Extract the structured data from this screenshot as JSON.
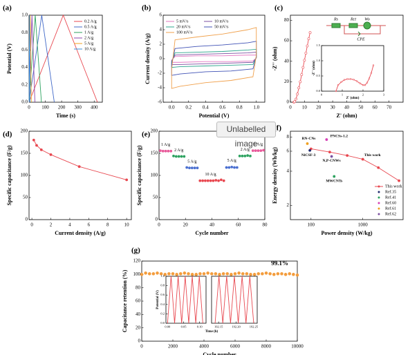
{
  "overlay": "Unlabelled image",
  "chart_data": [
    {
      "type": "line",
      "panel": "(a)",
      "xlabel": "Time (s)",
      "ylabel": "Potential (V)",
      "xlim": [
        0,
        450
      ],
      "xticks": [
        0,
        100,
        200,
        300,
        400
      ],
      "ylim": [
        0,
        1
      ],
      "yticks": [
        {
          "value": 0,
          "label": "0.0"
        },
        {
          "value": 0.2,
          "label": "0.2"
        },
        {
          "value": 0.4,
          "label": "0.4"
        },
        {
          "value": 0.6,
          "label": "0.6"
        },
        {
          "value": 0.8,
          "label": "0.8"
        },
        {
          "value": 1,
          "label": "1.0"
        }
      ],
      "legend": "upper right",
      "series": [
        {
          "name": "0.2 A/g",
          "color": "#e8474f",
          "x": [
            0,
            210,
            420
          ],
          "values": [
            0,
            1,
            0
          ]
        },
        {
          "name": "0.5 A/g",
          "color": "#4169c8",
          "x": [
            0,
            78,
            155
          ],
          "values": [
            0,
            1,
            0
          ]
        },
        {
          "name": "1 A/g",
          "color": "#2ca25f",
          "x": [
            0,
            38,
            76
          ],
          "values": [
            0,
            1,
            0
          ]
        },
        {
          "name": "2 A/g",
          "color": "#8e44ad",
          "x": [
            0,
            18,
            36
          ],
          "values": [
            0,
            1,
            0
          ]
        },
        {
          "name": "5 A/g",
          "color": "#f0a020",
          "x": [
            0,
            7,
            14
          ],
          "values": [
            0,
            1,
            0
          ]
        },
        {
          "name": "10 A/g",
          "color": "#3b8fd9",
          "x": [
            0,
            3,
            6
          ],
          "values": [
            0,
            1,
            0
          ]
        }
      ]
    },
    {
      "type": "line",
      "panel": "(b)",
      "xlabel": "Potential (V)",
      "ylabel": "Current density (A/g)",
      "xlim": [
        -0.1,
        1.1
      ],
      "xticks": [
        {
          "value": 0,
          "label": "0.0"
        },
        {
          "value": 0.2,
          "label": "0.2"
        },
        {
          "value": 0.4,
          "label": "0.4"
        },
        {
          "value": 0.6,
          "label": "0.6"
        },
        {
          "value": 0.8,
          "label": "0.8"
        },
        {
          "value": 1,
          "label": "1.0"
        }
      ],
      "ylim": [
        -6,
        6
      ],
      "yticks": [
        -6,
        -4,
        -2,
        0,
        2,
        4,
        6
      ],
      "legend": "upper left",
      "series": [
        {
          "name": "5 mV/s",
          "color": "#e377c2",
          "x": [
            0,
            0.04,
            0.3,
            0.6,
            0.9,
            1,
            1,
            0.96,
            0.7,
            0.4,
            0.1,
            0,
            0
          ],
          "values": [
            -0.2,
            0.3,
            0.4,
            0.4,
            0.5,
            0.5,
            0.1,
            -0.3,
            -0.4,
            -0.4,
            -0.5,
            -0.5,
            -0.2
          ]
        },
        {
          "name": "10 mV/s",
          "color": "#7b4fa0",
          "x": [
            0,
            0.04,
            0.3,
            0.6,
            0.9,
            1,
            1,
            0.96,
            0.7,
            0.4,
            0.1,
            0,
            0
          ],
          "values": [
            -0.3,
            0.5,
            0.6,
            0.7,
            0.8,
            0.9,
            0.1,
            -0.5,
            -0.6,
            -0.7,
            -0.8,
            -0.8,
            -0.3
          ]
        },
        {
          "name": "20 mV/s",
          "color": "#2ca58d",
          "x": [
            0,
            0.04,
            0.3,
            0.6,
            0.9,
            1,
            1,
            0.96,
            0.7,
            0.4,
            0.1,
            0,
            0
          ],
          "values": [
            -0.5,
            0.8,
            0.9,
            1.0,
            1.2,
            1.3,
            0.2,
            -0.8,
            -0.9,
            -1.0,
            -1.1,
            -1.2,
            -0.5
          ]
        },
        {
          "name": "50 mV/s",
          "color": "#3f51b5",
          "x": [
            0,
            0.04,
            0.3,
            0.6,
            0.9,
            1,
            1,
            0.96,
            0.7,
            0.4,
            0.1,
            0,
            0
          ],
          "values": [
            -0.8,
            1.4,
            1.7,
            1.9,
            2.2,
            2.4,
            0.3,
            -1.4,
            -1.7,
            -1.8,
            -2.1,
            -2.3,
            -0.8
          ]
        },
        {
          "name": "100 mV/s",
          "color": "#f0a04b",
          "x": [
            0,
            0.04,
            0.3,
            0.6,
            0.9,
            1,
            1,
            0.96,
            0.7,
            0.4,
            0.1,
            0,
            0
          ],
          "values": [
            -1.5,
            2.6,
            3.0,
            3.4,
            4.0,
            4.3,
            0.5,
            -2.5,
            -3.0,
            -3.3,
            -3.8,
            -4.1,
            -1.5
          ]
        }
      ]
    },
    {
      "type": "line",
      "panel": "(c)",
      "xlabel": "Z' (ohm)",
      "ylabel": "-Z'' (ohm)",
      "xlim": [
        0,
        80
      ],
      "xticks": [
        0,
        10,
        20,
        30,
        40,
        50,
        60,
        70
      ],
      "ylim": [
        0,
        85
      ],
      "yticks": [
        0,
        20,
        40,
        60,
        80
      ],
      "circuit": [
        "Rs",
        "Rct",
        "Wo",
        "CPE"
      ],
      "series": [
        {
          "name": "EIS",
          "color": "#e8474f",
          "marker": "open",
          "x": [
            2.5,
            3,
            4,
            5,
            6,
            7,
            8,
            9,
            10,
            11,
            12,
            13,
            14
          ],
          "values": [
            0,
            0.5,
            3,
            8,
            14,
            20,
            27,
            34,
            41,
            48,
            55,
            62,
            68
          ]
        }
      ]
    },
    {
      "type": "line",
      "xlabel": "Z' (ohm)",
      "ylabel": "-Z'' (ohm)",
      "xlim": [
        0,
        3
      ],
      "xticks": [
        0,
        1,
        2,
        3
      ],
      "ylim": [
        0,
        1.5
      ],
      "yticks": [
        {
          "value": 0,
          "label": "0.0"
        },
        {
          "value": 0.5,
          "label": "0.5"
        },
        {
          "value": 1,
          "label": "1.0"
        },
        {
          "value": 1.5,
          "label": "1.5"
        }
      ],
      "series": [
        {
          "name": "EIS",
          "color": "#e8474f",
          "marker": "open",
          "x": [
            0.7,
            0.8,
            0.95,
            1.1,
            1.25,
            1.4,
            1.55,
            1.7,
            1.85,
            2.0,
            2.1,
            2.2,
            2.3,
            2.4,
            2.5
          ],
          "values": [
            0,
            0.2,
            0.3,
            0.37,
            0.4,
            0.4,
            0.38,
            0.33,
            0.26,
            0.2,
            0.2,
            0.28,
            0.42,
            0.6,
            0.85
          ]
        }
      ]
    },
    {
      "type": "line",
      "panel": "(d)",
      "xlabel": "Current density (A/g)",
      "ylabel": "Specific capacitance (F/g)",
      "xlim": [
        -0.3,
        10.5
      ],
      "xticks": [
        0,
        2,
        4,
        6,
        8,
        10
      ],
      "ylim": [
        0,
        200
      ],
      "yticks": [
        0,
        50,
        100,
        150,
        200
      ],
      "series": [
        {
          "name": "Capacitance",
          "color": "#e8474f",
          "marker": "filled",
          "x": [
            0.2,
            0.5,
            1,
            2,
            5,
            10
          ],
          "values": [
            180,
            168,
            158,
            147,
            120,
            90
          ]
        }
      ]
    },
    {
      "type": "scatter",
      "panel": "(e)",
      "xlabel": "Cycle number",
      "ylabel": "Specific capacitance (F/g)",
      "xlim": [
        0,
        80
      ],
      "xticks": [
        0,
        20,
        40,
        60,
        80
      ],
      "ylim": [
        0,
        200
      ],
      "yticks": [
        0,
        50,
        100,
        150,
        200
      ],
      "series": [
        {
          "name": "1 A/g",
          "color": "#e85a9a",
          "x": [
            1,
            3,
            5,
            7,
            9
          ],
          "values": [
            156,
            155,
            155,
            155,
            155
          ]
        },
        {
          "name": "2 A/g",
          "color": "#2ca25f",
          "x": [
            11,
            13,
            15,
            17,
            19
          ],
          "values": [
            144,
            143,
            143,
            143,
            143
          ]
        },
        {
          "name": "5 A/g",
          "color": "#4a6fd0",
          "x": [
            21,
            23,
            25,
            27,
            29
          ],
          "values": [
            118,
            117,
            117,
            117,
            117
          ]
        },
        {
          "name": "10 A/g",
          "color": "#e8474f",
          "x": [
            31,
            33,
            35,
            37,
            39,
            41,
            43,
            45,
            47,
            49
          ],
          "values": [
            88,
            88,
            88,
            88,
            88,
            88,
            89,
            88,
            90,
            88
          ]
        },
        {
          "name": "5 A/g",
          "color": "#4a6fd0",
          "x": [
            51,
            53,
            55,
            57,
            59
          ],
          "values": [
            118,
            118,
            119,
            118,
            118
          ]
        },
        {
          "name": "2 A/g",
          "color": "#2ca25f",
          "x": [
            61,
            63,
            65,
            67,
            69
          ],
          "values": [
            144,
            144,
            144,
            145,
            144
          ]
        },
        {
          "name": "1 A/g",
          "color": "#e85a9a",
          "x": [
            71,
            73,
            75,
            77,
            79
          ],
          "values": [
            156,
            156,
            156,
            156,
            157
          ]
        }
      ]
    },
    {
      "type": "line",
      "panel": "(f)",
      "xlabel": "Power density (W/kg)",
      "ylabel": "Energy density (Wh/kg)",
      "xlog": true,
      "ylog": true,
      "xlim": [
        40,
        6000
      ],
      "xticks": [
        100,
        1000
      ],
      "ylim": [
        1.5,
        9
      ],
      "yticks": [
        2,
        4,
        6,
        8
      ],
      "legend": "lower right",
      "series": [
        {
          "name": "This work",
          "color": "#e8474f",
          "marker": "filled",
          "x": [
            100,
            230,
            500,
            1000,
            2000,
            5000
          ],
          "values": [
            6.3,
            5.9,
            5.5,
            5.1,
            4.3,
            3.3
          ]
        },
        {
          "name": "Ref.35",
          "label": "NiCSF-3",
          "color": "#1f2a6e",
          "marker": "filled",
          "line": false,
          "x": [
            95
          ],
          "values": [
            6.1
          ]
        },
        {
          "name": "Ref.41",
          "label": "MWCNTs",
          "color": "#2ca25f",
          "marker": "filled",
          "line": false,
          "x": [
            280
          ],
          "values": [
            3.6
          ]
        },
        {
          "name": "Ref.60",
          "label": "PNCSs-1.2",
          "color": "#d63fb5",
          "marker": "filled",
          "line": false,
          "x": [
            200
          ],
          "values": [
            7.6
          ]
        },
        {
          "name": "Ref.61",
          "label": "RN-CNs",
          "color": "#f0a020",
          "marker": "filled",
          "line": false,
          "x": [
            85
          ],
          "values": [
            7.0
          ]
        },
        {
          "name": "Ref.62",
          "label": "N,P-CNWs",
          "color": "#7b4fa0",
          "marker": "filled",
          "line": false,
          "x": [
            250
          ],
          "values": [
            5.4
          ]
        }
      ]
    },
    {
      "type": "scatter",
      "panel": "(g)",
      "xlabel": "Cycle number",
      "ylabel": "Capacitance retention (%)",
      "xlim": [
        0,
        10000
      ],
      "xticks": [
        0,
        2000,
        4000,
        6000,
        8000,
        10000
      ],
      "ylim": [
        0,
        120
      ],
      "yticks": [
        0,
        20,
        40,
        60,
        80,
        100,
        120
      ],
      "annotation": "99.1%",
      "series": [
        {
          "name": "Retention",
          "color": "#f39c3c",
          "x": [
            0,
            250,
            500,
            750,
            1000,
            1250,
            1500,
            1750,
            2000,
            2250,
            2500,
            2750,
            3000,
            3250,
            3500,
            3750,
            4000,
            4250,
            4500,
            4750,
            5000,
            5250,
            5500,
            5750,
            6000,
            6250,
            6500,
            6750,
            7000,
            7250,
            7500,
            7750,
            8000,
            8250,
            8500,
            8750,
            9000,
            9250,
            9500,
            9750,
            10000
          ],
          "values": [
            100,
            102,
            101,
            101,
            102,
            101,
            100,
            101,
            101,
            100,
            101,
            102,
            101,
            100,
            100,
            101,
            101,
            102,
            101,
            101,
            100,
            101,
            101,
            100,
            101,
            102,
            101,
            101,
            100,
            100,
            101,
            101,
            102,
            101,
            100,
            101,
            101,
            100,
            101,
            100,
            99.1
          ]
        }
      ]
    },
    {
      "type": "line",
      "xlabel": "Time (h)",
      "ylabel": "Potential (V)",
      "xlim": [
        -0.005,
        0.12
      ],
      "xticks": [
        {
          "value": 0,
          "label": "0.00"
        },
        {
          "value": 0.05,
          "label": "0.05"
        },
        {
          "value": 0.1,
          "label": "0.10"
        }
      ],
      "ylim": [
        0,
        1
      ],
      "yticks": [
        {
          "value": 0,
          "label": "0.0"
        },
        {
          "value": 0.2,
          "label": "0.2"
        },
        {
          "value": 0.4,
          "label": "0.4"
        },
        {
          "value": 0.6,
          "label": "0.6"
        },
        {
          "value": 0.8,
          "label": "0.8"
        },
        {
          "value": 1,
          "label": "1.0"
        }
      ],
      "series": [
        {
          "name": "GCD start",
          "color": "#e8474f",
          "x": [
            0,
            0.011,
            0.022,
            0.033,
            0.044,
            0.055,
            0.066,
            0.077,
            0.088,
            0.099,
            0.11
          ],
          "values": [
            0,
            1,
            0,
            1,
            0,
            1,
            0,
            1,
            0,
            1,
            0
          ]
        }
      ]
    },
    {
      "type": "line",
      "xlim": [
        192.13,
        192.26
      ],
      "xticks": [
        192.15,
        {
          "value": 192.2,
          "label": "192.20"
        },
        192.25
      ],
      "ylim": [
        0,
        1
      ],
      "series": [
        {
          "name": "GCD end",
          "color": "#e8474f",
          "x": [
            192.14,
            192.151,
            192.162,
            192.173,
            192.184,
            192.195,
            192.206,
            192.217,
            192.228,
            192.239,
            192.25
          ],
          "values": [
            0,
            1,
            0,
            1,
            0,
            1,
            0,
            1,
            0,
            1,
            0
          ]
        }
      ]
    }
  ]
}
